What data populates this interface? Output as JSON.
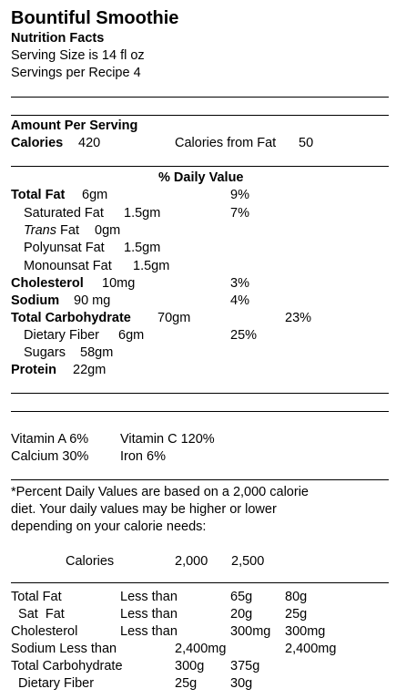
{
  "title": "Bountiful Smoothie",
  "subtitle": "Nutrition Facts",
  "serving_size": "Serving Size is 14 fl oz",
  "servings": "Servings per Recipe 4",
  "amount_per_serving": "Amount Per Serving",
  "calories": {
    "label": "Calories",
    "value": "420",
    "from_fat_label": "Calories from Fat",
    "from_fat_value": "50"
  },
  "daily_value_header": "% Daily Value",
  "nutrients": {
    "total_fat": {
      "label": "Total Fat",
      "amount": "6gm",
      "dv": "9%"
    },
    "saturated_fat": {
      "label": "Saturated Fat",
      "amount": "1.5gm",
      "dv": "7%"
    },
    "trans_fat": {
      "label_italic": "Trans",
      "label_rest": "Fat",
      "amount": "0gm"
    },
    "polyunsat_fat": {
      "label": "Polyunsat Fat",
      "amount": "1.5gm"
    },
    "monounsat_fat": {
      "label": "Monounsat Fat",
      "amount": "1.5gm"
    },
    "cholesterol": {
      "label": "Cholesterol",
      "amount": "10mg",
      "dv": "3%"
    },
    "sodium": {
      "label": "Sodium",
      "amount": "90 mg",
      "dv": "4%"
    },
    "total_carbohydrate": {
      "label": "Total Carbohydrate",
      "amount": "70gm",
      "dv": "23%"
    },
    "dietary_fiber": {
      "label": "Dietary Fiber",
      "amount": "6gm",
      "dv": "25%"
    },
    "sugars": {
      "label": "Sugars",
      "amount": "58gm"
    },
    "protein": {
      "label": "Protein",
      "amount": "22gm"
    }
  },
  "vitamins": {
    "vitamin_a": "Vitamin A  6%",
    "vitamin_c": "Vitamin C  120%",
    "calcium": "Calcium  30%",
    "iron": "Iron  6%"
  },
  "footnote": [
    "*Percent Daily Values are based on a 2,000 calorie",
    "diet. Your daily values may be higher or lower",
    "depending on your calorie needs:"
  ],
  "reference": {
    "header": {
      "label": "Calories",
      "col1": "2,000",
      "col2": "2,500"
    },
    "rows": [
      {
        "label": "Total Fat",
        "qual": "Less than",
        "v1": "65g",
        "v2": "80g"
      },
      {
        "label": "  Sat  Fat",
        "qual": "Less than",
        "v1": "20g",
        "v2": "25g"
      },
      {
        "label": "Cholesterol",
        "qual": "Less than",
        "v1": "300mg",
        "v2": "300mg"
      },
      {
        "label": "Sodium Less than",
        "v1": "2,400mg",
        "v2": "2,400mg"
      },
      {
        "label": "Total Carbohydrate",
        "v1": "300g",
        "v2": "375g"
      },
      {
        "label": "  Dietary Fiber",
        "v1": "25g",
        "v2": "30g"
      }
    ]
  }
}
